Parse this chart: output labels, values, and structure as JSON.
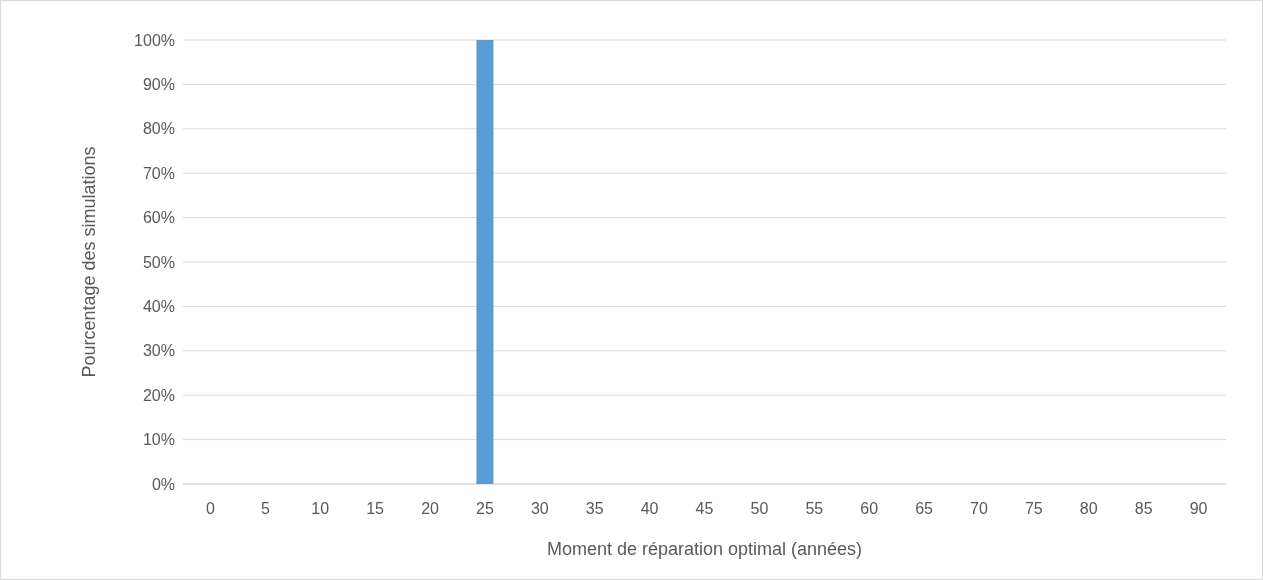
{
  "chart_data": {
    "type": "bar",
    "xlabel": "Moment de réparation optimal (années)",
    "ylabel": "Pourcentage des simulations",
    "categories": [
      "0",
      "5",
      "10",
      "15",
      "20",
      "25",
      "30",
      "35",
      "40",
      "45",
      "50",
      "55",
      "60",
      "65",
      "70",
      "75",
      "80",
      "85",
      "90"
    ],
    "values": [
      0,
      0,
      0,
      0,
      0,
      100,
      0,
      0,
      0,
      0,
      0,
      0,
      0,
      0,
      0,
      0,
      0,
      0,
      0
    ],
    "color": "#5b9bd5",
    "ylim": [
      0,
      100
    ],
    "yticks": [
      {
        "value": 0,
        "label": "0%"
      },
      {
        "value": 10,
        "label": "10%"
      },
      {
        "value": 20,
        "label": "20%"
      },
      {
        "value": 30,
        "label": "30%"
      },
      {
        "value": 40,
        "label": "40%"
      },
      {
        "value": 50,
        "label": "50%"
      },
      {
        "value": 60,
        "label": "60%"
      },
      {
        "value": 70,
        "label": "70%"
      },
      {
        "value": 80,
        "label": "80%"
      },
      {
        "value": 90,
        "label": "90%"
      },
      {
        "value": 100,
        "label": "100%"
      }
    ],
    "grid": "y"
  }
}
